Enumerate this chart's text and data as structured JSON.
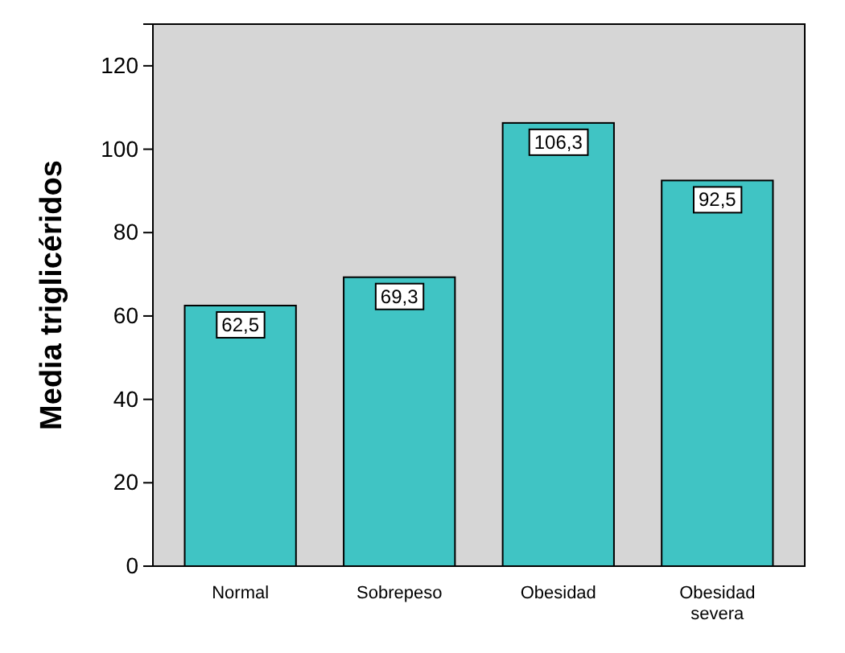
{
  "chart_data": {
    "type": "bar",
    "ylabel": "Media triglicéridos",
    "categories": [
      "Normal",
      "Sobrepeso",
      "Obesidad",
      "Obesidad\nsevera"
    ],
    "values": [
      62.5,
      69.3,
      106.3,
      92.5
    ],
    "value_labels": [
      "62,5",
      "69,3",
      "106,3",
      "92,5"
    ],
    "color": "#40c4c4",
    "ylim": [
      0,
      130
    ],
    "yticks": [
      0,
      20,
      40,
      60,
      80,
      100,
      120
    ],
    "grid": false
  }
}
